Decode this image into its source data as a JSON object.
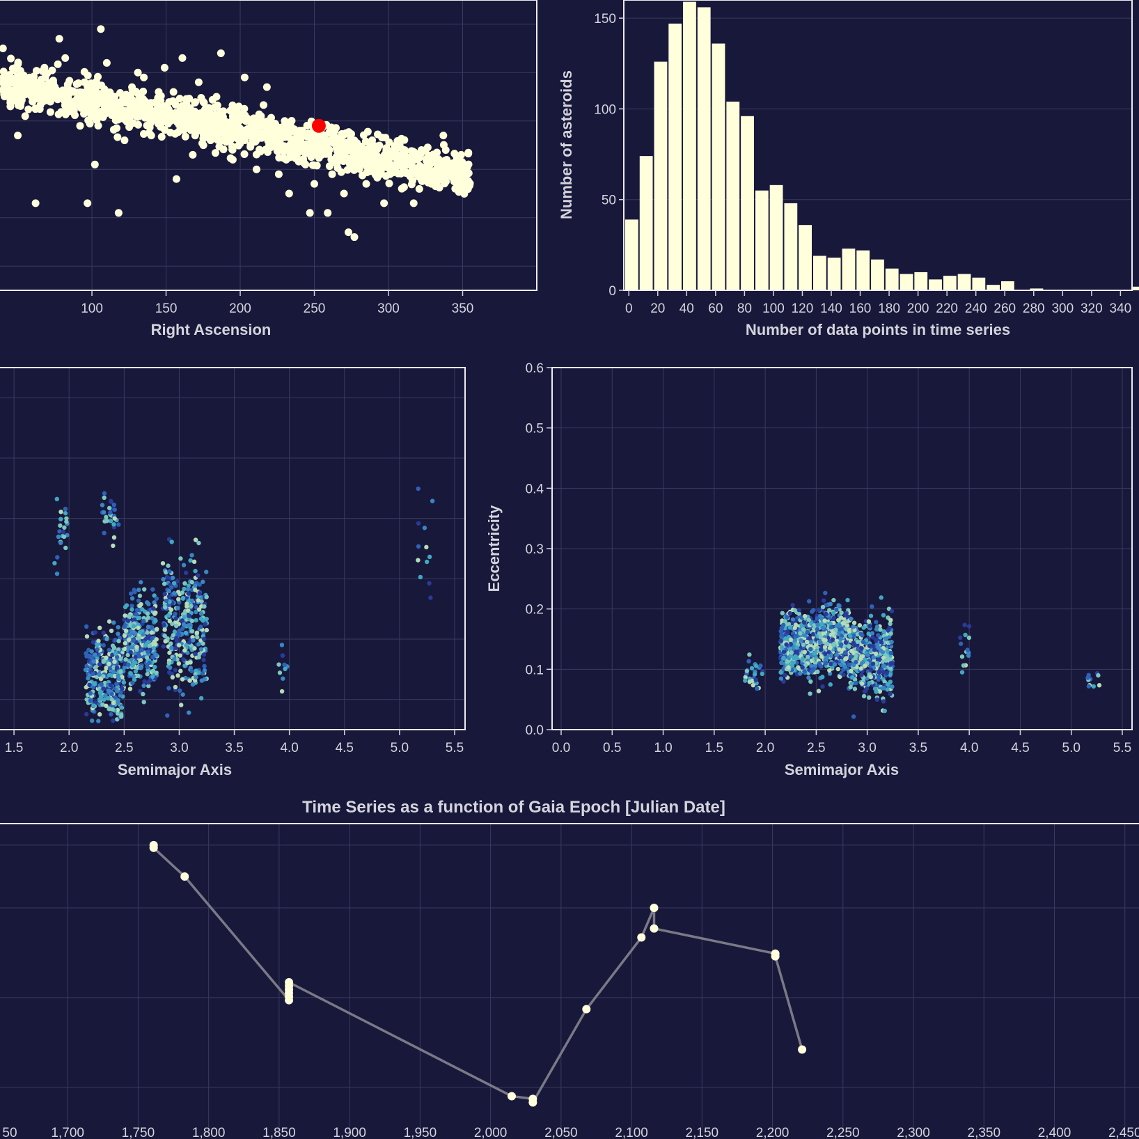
{
  "chart_data": [
    {
      "id": "ra-scatter",
      "type": "scatter",
      "title": "",
      "xlabel": "Right Ascension",
      "ylabel": "",
      "xlim": [
        38,
        400
      ],
      "ylim": [
        0,
        6
      ],
      "xticks": [
        100,
        150,
        200,
        250,
        300,
        350
      ],
      "grid": true,
      "point_color": "#ffffdc",
      "highlight_color": "#ff0000",
      "highlight": {
        "x": 253,
        "y": 3.4
      },
      "points": [
        [
          40,
          5.0
        ],
        [
          45,
          3.8
        ],
        [
          50,
          3.2
        ],
        [
          55,
          3.6
        ],
        [
          58,
          4.4
        ],
        [
          62,
          1.8
        ],
        [
          68,
          4.6
        ],
        [
          72,
          3.9
        ],
        [
          78,
          5.2
        ],
        [
          82,
          4.8
        ],
        [
          88,
          4.1
        ],
        [
          92,
          3.4
        ],
        [
          97,
          1.8
        ],
        [
          102,
          2.6
        ],
        [
          106,
          5.4
        ],
        [
          110,
          4.7
        ],
        [
          113,
          3.8
        ],
        [
          118,
          1.6
        ],
        [
          122,
          3.1
        ],
        [
          127,
          4.2
        ],
        [
          131,
          4.5
        ],
        [
          136,
          3.9
        ],
        [
          140,
          3.2
        ],
        [
          145,
          4.1
        ],
        [
          149,
          4.6
        ],
        [
          153,
          3.5
        ],
        [
          157,
          2.3
        ],
        [
          161,
          4.8
        ],
        [
          164,
          3.7
        ],
        [
          168,
          2.8
        ],
        [
          172,
          4.3
        ],
        [
          176,
          3.6
        ],
        [
          180,
          3.1
        ],
        [
          184,
          4.0
        ],
        [
          187,
          4.9
        ],
        [
          191,
          3.3
        ],
        [
          195,
          2.7
        ],
        [
          199,
          3.8
        ],
        [
          203,
          4.4
        ],
        [
          207,
          3.0
        ],
        [
          211,
          2.5
        ],
        [
          214,
          3.6
        ],
        [
          218,
          4.2
        ],
        [
          222,
          3.1
        ],
        [
          226,
          2.4
        ],
        [
          230,
          3.5
        ],
        [
          233,
          2.0
        ],
        [
          237,
          2.9
        ],
        [
          240,
          3.3
        ],
        [
          244,
          2.6
        ],
        [
          247,
          1.6
        ],
        [
          250,
          2.2
        ],
        [
          256,
          3.1
        ],
        [
          259,
          1.6
        ],
        [
          262,
          2.4
        ],
        [
          266,
          2.9
        ],
        [
          270,
          2.0
        ],
        [
          273,
          1.2
        ],
        [
          277,
          1.1
        ],
        [
          281,
          2.6
        ],
        [
          285,
          2.2
        ],
        [
          289,
          3.1
        ],
        [
          293,
          2.5
        ],
        [
          297,
          1.8
        ],
        [
          301,
          2.4
        ],
        [
          305,
          3.0
        ],
        [
          309,
          2.1
        ],
        [
          313,
          2.6
        ],
        [
          317,
          1.8
        ],
        [
          321,
          2.4
        ],
        [
          325,
          2.9
        ],
        [
          329,
          2.2
        ],
        [
          333,
          2.7
        ],
        [
          337,
          3.2
        ],
        [
          341,
          2.5
        ],
        [
          345,
          2.1
        ],
        [
          349,
          2.8
        ],
        [
          353,
          2.2
        ],
        [
          60,
          3.9
        ],
        [
          75,
          4.2
        ],
        [
          95,
          4.3
        ],
        [
          115,
          4.0
        ],
        [
          135,
          4.4
        ],
        [
          155,
          4.1
        ],
        [
          175,
          3.9
        ],
        [
          195,
          3.6
        ],
        [
          215,
          3.4
        ],
        [
          235,
          3.1
        ],
        [
          255,
          2.8
        ],
        [
          275,
          2.6
        ],
        [
          295,
          2.5
        ],
        [
          315,
          2.4
        ],
        [
          335,
          2.3
        ],
        [
          85,
          3.7
        ],
        [
          125,
          3.9
        ],
        [
          165,
          3.5
        ],
        [
          205,
          3.2
        ],
        [
          245,
          2.9
        ],
        [
          285,
          2.7
        ],
        [
          325,
          2.5
        ]
      ]
    },
    {
      "id": "histogram",
      "type": "bar",
      "title": "",
      "xlabel": "Number of data points in time series",
      "ylabel": "Number of asteroids",
      "xlim": [
        -3,
        348
      ],
      "ylim": [
        0,
        160
      ],
      "xticks": [
        0,
        20,
        40,
        60,
        80,
        100,
        120,
        140,
        160,
        180,
        200,
        220,
        240,
        260,
        280,
        300,
        320,
        340
      ],
      "yticks": [
        0,
        50,
        100,
        150
      ],
      "bin_width": 10,
      "bin_start": -3,
      "values": [
        39,
        74,
        126,
        147,
        159,
        156,
        136,
        104,
        96,
        55,
        58,
        48,
        36,
        19,
        18,
        23,
        22,
        17,
        12,
        9,
        10,
        6,
        8,
        9,
        7,
        3,
        5,
        0,
        1,
        0,
        0,
        0,
        0,
        0,
        0,
        2
      ],
      "bar_color": "#ffffdc"
    },
    {
      "id": "sma-scatter-left",
      "type": "scatter",
      "title": "",
      "xlabel": "Semimajor Axis",
      "ylabel": "",
      "xlim": [
        1.0,
        5.5
      ],
      "ylim": [
        0,
        0.6
      ],
      "xticks": [
        1.5,
        2.0,
        2.5,
        3.0,
        3.5,
        4.0,
        4.5,
        5.0,
        5.5
      ],
      "grid": true
    },
    {
      "id": "eccentricity-scatter",
      "type": "scatter",
      "title": "",
      "xlabel": "Semimajor Axis",
      "ylabel": "Eccentricity",
      "xlim": [
        0,
        5.5
      ],
      "ylim": [
        0,
        0.6
      ],
      "xticks": [
        0.0,
        0.5,
        1.0,
        1.5,
        2.0,
        2.5,
        3.0,
        3.5,
        4.0,
        4.5,
        5.0,
        5.5
      ],
      "yticks": [
        0.0,
        0.1,
        0.2,
        0.3,
        0.4,
        0.5,
        0.6
      ],
      "grid": true
    },
    {
      "id": "time-series",
      "type": "line",
      "title": "Time Series as a function of Gaia Epoch [Julian Date]",
      "xlabel": "",
      "ylabel": "",
      "xlim": [
        1652,
        2460
      ],
      "ylim": [
        0,
        3.3
      ],
      "xticks": [
        1700,
        1750,
        1800,
        1850,
        1900,
        1950,
        2000,
        2050,
        2100,
        2150,
        2200,
        2250,
        2300,
        2350,
        2400,
        2450
      ],
      "xtick_first_label": "50",
      "grid": true,
      "line_color": "#7a7a86",
      "point_color": "#ffffdc",
      "x": [
        1761,
        1761,
        1783,
        1857,
        1857,
        1857,
        1857,
        1857,
        1857,
        2015,
        2030,
        2030,
        2068,
        2107,
        2116,
        2116,
        2202,
        2202,
        2221
      ],
      "y": [
        3.2,
        3.17,
        2.85,
        1.47,
        1.51,
        1.55,
        1.59,
        1.63,
        1.67,
        0.4,
        0.37,
        0.33,
        1.37,
        2.17,
        2.5,
        2.27,
        1.99,
        1.96,
        0.92
      ]
    }
  ]
}
